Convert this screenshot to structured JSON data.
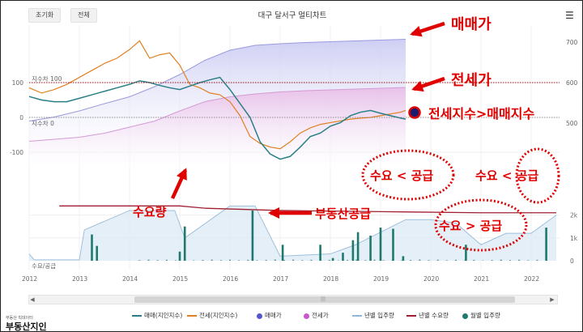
{
  "toolbar": {
    "reset_label": "초기화",
    "all_label": "전체"
  },
  "chart_title": "대구 달서구 멀티차트",
  "chart_data": {
    "type": "line",
    "title": "대구 달서구 멀티차트",
    "x_range": [
      "2012",
      "2022"
    ],
    "x_ticks": [
      "2012",
      "2013",
      "2014",
      "2015",
      "2016",
      "2017",
      "2018",
      "2019",
      "2020",
      "2021",
      "2022"
    ],
    "y_left_ticks": [
      "100",
      "0",
      "-100"
    ],
    "y_right_ticks": [
      "700",
      "600",
      "500"
    ],
    "y_lower_right_ticks": [
      "2k",
      "1k",
      "0"
    ],
    "reference_labels": {
      "top": "지수차 100",
      "mid": "지수차 0",
      "bottom": "수요/공급"
    },
    "series": [
      {
        "name": "매매(지인지수)",
        "color": "#2a7f86",
        "x": [
          2012.0,
          2012.25,
          2012.5,
          2012.75,
          2013.0,
          2013.25,
          2013.5,
          2013.75,
          2014.0,
          2014.2,
          2014.4,
          2014.6,
          2014.8,
          2015.0,
          2015.2,
          2015.4,
          2015.6,
          2015.8,
          2016.0,
          2016.2,
          2016.4,
          2016.6,
          2016.8,
          2017.0,
          2017.2,
          2017.4,
          2017.6,
          2017.8,
          2018.0,
          2018.2,
          2018.4,
          2018.6,
          2018.8,
          2019.0,
          2019.2,
          2019.4,
          2019.5
        ],
        "values": [
          60,
          50,
          45,
          45,
          55,
          65,
          75,
          85,
          95,
          105,
          100,
          92,
          85,
          80,
          90,
          100,
          108,
          115,
          80,
          40,
          0,
          -70,
          -105,
          -120,
          -112,
          -85,
          -55,
          -45,
          -25,
          -15,
          5,
          15,
          20,
          12,
          5,
          -2,
          -5
        ]
      },
      {
        "name": "전세(지인지수)",
        "color": "#e08020",
        "x": [
          2012.0,
          2012.25,
          2012.5,
          2012.75,
          2013.0,
          2013.25,
          2013.5,
          2013.75,
          2014.0,
          2014.2,
          2014.4,
          2014.6,
          2014.8,
          2015.0,
          2015.2,
          2015.4,
          2015.6,
          2015.8,
          2016.0,
          2016.2,
          2016.4,
          2016.6,
          2016.8,
          2017.0,
          2017.2,
          2017.4,
          2017.6,
          2017.8,
          2018.0,
          2018.2,
          2018.4,
          2018.6,
          2018.8,
          2019.0,
          2019.2,
          2019.4,
          2019.5
        ],
        "values": [
          85,
          70,
          80,
          95,
          115,
          135,
          155,
          170,
          195,
          220,
          170,
          180,
          185,
          150,
          95,
          85,
          70,
          65,
          45,
          5,
          -55,
          -75,
          -85,
          -90,
          -70,
          -45,
          -30,
          -20,
          -15,
          -10,
          -5,
          -2,
          0,
          5,
          10,
          15,
          20
        ]
      },
      {
        "name": "매매가",
        "color": "#5555cc",
        "x": [
          2012.0,
          2012.5,
          2013.0,
          2013.5,
          2014.0,
          2014.5,
          2015.0,
          2015.5,
          2016.0,
          2016.5,
          2017.0,
          2017.5,
          2018.0,
          2018.5,
          2019.0,
          2019.5
        ],
        "values": [
          505,
          515,
          530,
          548,
          565,
          590,
          620,
          655,
          680,
          692,
          696,
          699,
          701,
          703,
          705,
          707
        ]
      },
      {
        "name": "전세가",
        "color": "#cc55cc",
        "x": [
          2012.0,
          2012.5,
          2013.0,
          2013.5,
          2014.0,
          2014.5,
          2015.0,
          2015.5,
          2016.0,
          2016.5,
          2017.0,
          2017.5,
          2018.0,
          2018.5,
          2019.0,
          2019.5
        ],
        "values": [
          455,
          460,
          465,
          475,
          490,
          505,
          530,
          553,
          565,
          572,
          577,
          580,
          582,
          584,
          586,
          588
        ]
      },
      {
        "name": "년별 입주량",
        "color": "#8fb7d9",
        "x": [
          2012,
          2012.1,
          2013,
          2013.1,
          2014,
          2014.9,
          2015.1,
          2016,
          2016.5,
          2017,
          2018,
          2018.5,
          2019.5,
          2020,
          2020.5,
          2021,
          2021.5,
          2022,
          2022.5
        ],
        "values": [
          300,
          40,
          40,
          1350,
          2200,
          2200,
          1000,
          2400,
          2400,
          200,
          300,
          700,
          1800,
          1800,
          1650,
          700,
          1200,
          1200,
          2000
        ]
      },
      {
        "name": "년별 수요량",
        "color": "#a02030",
        "x": [
          2012.6,
          2015.0,
          2015.5,
          2017.0,
          2019.0,
          2021.0,
          2022.5
        ],
        "values": [
          2400,
          2400,
          2300,
          2200,
          2150,
          2100,
          2100
        ]
      },
      {
        "name": "월별 입주량",
        "color": "#1e7a6e",
        "x": [
          2013.25,
          2013.35,
          2015.0,
          2015.1,
          2016.45,
          2017.05,
          2017.8,
          2018.05,
          2018.25,
          2018.45,
          2018.55,
          2018.8,
          2019.0,
          2019.25,
          2019.45,
          2020.7,
          2022.3
        ],
        "values": [
          1150,
          650,
          400,
          1500,
          2200,
          700,
          700,
          120,
          350,
          900,
          1250,
          1100,
          1450,
          1400,
          200,
          700,
          1450
        ]
      }
    ],
    "grid": true
  },
  "annotations": {
    "sale_price": "매매가",
    "jeonse_price": "전세가",
    "jeonse_gt_sale": "전세지수>매매지수",
    "demand": "수요량",
    "supply": "부동산공급",
    "demand_lt_supply_1": "수요 < 공급",
    "demand_lt_supply_2": "수요 < 공급",
    "demand_gt_supply": "수요 > 공급"
  },
  "colors": {
    "sale_index": "#2a7f86",
    "jeonse_index": "#e08020",
    "sale_price_fill": "#c9c9f3",
    "jeonse_price_fill": "#e8bfe8",
    "yearly_supply_fill": "#dce9f4",
    "yearly_demand": "#a02030",
    "monthly_supply": "#1e7a6e",
    "annotation": "#e00000"
  },
  "legend": [
    {
      "label": "매매(지인지수)",
      "type": "line",
      "color": "#2a7f86"
    },
    {
      "label": "전세(지인지수)",
      "type": "line",
      "color": "#e08020"
    },
    {
      "label": "매매가",
      "type": "dot",
      "color": "#5555cc"
    },
    {
      "label": "전세가",
      "type": "dot",
      "color": "#cc55cc"
    },
    {
      "label": "년별 입주량",
      "type": "line",
      "color": "#8fb7d9"
    },
    {
      "label": "년별 수요량",
      "type": "line",
      "color": "#a02030"
    },
    {
      "label": "월별 입주량",
      "type": "dot",
      "color": "#1e7a6e"
    }
  ],
  "logo": {
    "small": "부동산 빅데이터",
    "main": "부동산지인"
  }
}
